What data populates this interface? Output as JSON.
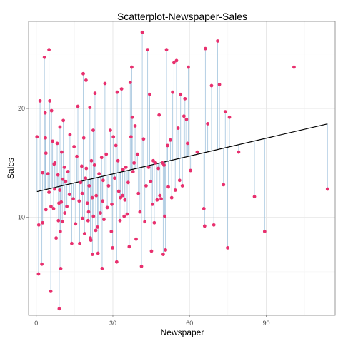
{
  "chart_data": {
    "type": "scatter",
    "title": "Scatterplot-Newspaper-Sales",
    "xlabel": "Newspaper",
    "ylabel": "Sales",
    "xlim": [
      -3,
      117
    ],
    "ylim": [
      1.0,
      28.0
    ],
    "x_ticks": [
      0,
      30,
      60,
      90
    ],
    "y_ticks": [
      10,
      20
    ],
    "grid": true,
    "regression_line": {
      "intercept": 12.35,
      "slope": 0.0547,
      "x_range": [
        0.3,
        114
      ]
    },
    "residual_segments": true,
    "points": [
      [
        0.3,
        17.4
      ],
      [
        0.9,
        4.8
      ],
      [
        1.0,
        9.3
      ],
      [
        1.5,
        20.7
      ],
      [
        2.2,
        5.7
      ],
      [
        2.5,
        14.1
      ],
      [
        2.5,
        9.5
      ],
      [
        3.2,
        24.7
      ],
      [
        3.5,
        19.6
      ],
      [
        3.6,
        17.3
      ],
      [
        3.8,
        10.7
      ],
      [
        3.8,
        15.9
      ],
      [
        4.6,
        14.0
      ],
      [
        5.0,
        25.4
      ],
      [
        5.0,
        12.3
      ],
      [
        5.3,
        20.7
      ],
      [
        5.7,
        3.2
      ],
      [
        5.8,
        11.0
      ],
      [
        6.0,
        19.8
      ],
      [
        6.4,
        17.0
      ],
      [
        6.8,
        10.8
      ],
      [
        7.0,
        14.9
      ],
      [
        7.2,
        12.6
      ],
      [
        7.3,
        15.0
      ],
      [
        7.8,
        8.1
      ],
      [
        8.2,
        16.8
      ],
      [
        8.5,
        13.9
      ],
      [
        8.7,
        9.7
      ],
      [
        8.9,
        11.3
      ],
      [
        9.0,
        1.6
      ],
      [
        9.2,
        12.5
      ],
      [
        9.3,
        18.3
      ],
      [
        9.4,
        8.7
      ],
      [
        9.6,
        5.3
      ],
      [
        9.8,
        11.4
      ],
      [
        10.0,
        16.0
      ],
      [
        10.2,
        9.6
      ],
      [
        10.4,
        13.5
      ],
      [
        10.6,
        18.9
      ],
      [
        11.0,
        14.6
      ],
      [
        11.2,
        10.4
      ],
      [
        11.5,
        13.3
      ],
      [
        12.0,
        11.0
      ],
      [
        12.4,
        14.2
      ],
      [
        13.0,
        12.1
      ],
      [
        13.2,
        17.6
      ],
      [
        13.9,
        7.6
      ],
      [
        14.5,
        11.7
      ],
      [
        14.8,
        16.5
      ],
      [
        15.4,
        9.4
      ],
      [
        15.9,
        15.6
      ],
      [
        16.3,
        20.2
      ],
      [
        16.8,
        11.5
      ],
      [
        17.0,
        7.6
      ],
      [
        17.4,
        13.2
      ],
      [
        17.8,
        14.7
      ],
      [
        18.0,
        12.2
      ],
      [
        18.1,
        9.9
      ],
      [
        18.4,
        23.2
      ],
      [
        18.6,
        17.3
      ],
      [
        18.9,
        8.5
      ],
      [
        19.3,
        13.6
      ],
      [
        19.5,
        22.6
      ],
      [
        19.6,
        14.5
      ],
      [
        20.0,
        11.3
      ],
      [
        20.3,
        9.7
      ],
      [
        20.5,
        10.5
      ],
      [
        20.7,
        12.9
      ],
      [
        21.0,
        20.1
      ],
      [
        21.2,
        8.1
      ],
      [
        21.4,
        7.9
      ],
      [
        21.6,
        15.2
      ],
      [
        21.9,
        11.8
      ],
      [
        22.0,
        6.6
      ],
      [
        22.3,
        18.0
      ],
      [
        22.4,
        10.1
      ],
      [
        22.8,
        14.8
      ],
      [
        23.0,
        21.4
      ],
      [
        23.3,
        8.8
      ],
      [
        23.5,
        12.0
      ],
      [
        24.0,
        9.1
      ],
      [
        24.2,
        6.7
      ],
      [
        24.6,
        14.0
      ],
      [
        25.1,
        10.4
      ],
      [
        25.6,
        15.5
      ],
      [
        25.8,
        5.3
      ],
      [
        26.0,
        11.5
      ],
      [
        26.2,
        13.4
      ],
      [
        26.5,
        9.8
      ],
      [
        26.9,
        22.3
      ],
      [
        27.4,
        15.8
      ],
      [
        27.8,
        10.9
      ],
      [
        28.3,
        12.9
      ],
      [
        29.0,
        18.0
      ],
      [
        29.4,
        8.7
      ],
      [
        29.6,
        11.2
      ],
      [
        29.9,
        7.2
      ],
      [
        30.2,
        17.4
      ],
      [
        30.7,
        13.6
      ],
      [
        31.2,
        16.6
      ],
      [
        31.5,
        5.9
      ],
      [
        31.7,
        21.5
      ],
      [
        32.0,
        15.2
      ],
      [
        32.3,
        12.4
      ],
      [
        32.8,
        9.7
      ],
      [
        33.0,
        11.8
      ],
      [
        33.4,
        21.8
      ],
      [
        33.8,
        12.0
      ],
      [
        34.0,
        14.4
      ],
      [
        34.4,
        10.1
      ],
      [
        34.7,
        11.6
      ],
      [
        35.1,
        14.6
      ],
      [
        35.6,
        10.3
      ],
      [
        36.0,
        13.2
      ],
      [
        36.4,
        7.3
      ],
      [
        36.8,
        22.4
      ],
      [
        37.1,
        17.4
      ],
      [
        37.4,
        23.8
      ],
      [
        37.6,
        19.2
      ],
      [
        37.9,
        14.2
      ],
      [
        38.3,
        15.0
      ],
      [
        38.7,
        18.4
      ],
      [
        39.1,
        8.0
      ],
      [
        39.6,
        15.8
      ],
      [
        40.0,
        12.2
      ],
      [
        40.6,
        10.5
      ],
      [
        41.2,
        5.5
      ],
      [
        41.5,
        27.0
      ],
      [
        42.0,
        17.2
      ],
      [
        42.5,
        9.6
      ],
      [
        43.0,
        12.9
      ],
      [
        43.6,
        25.4
      ],
      [
        44.0,
        14.6
      ],
      [
        44.4,
        21.3
      ],
      [
        44.8,
        13.3
      ],
      [
        45.1,
        6.9
      ],
      [
        45.5,
        11.2
      ],
      [
        45.8,
        15.2
      ],
      [
        46.2,
        9.5
      ],
      [
        46.7,
        15.0
      ],
      [
        47.3,
        11.6
      ],
      [
        47.8,
        14.5
      ],
      [
        48.1,
        19.4
      ],
      [
        48.4,
        12.0
      ],
      [
        48.9,
        11.7
      ],
      [
        49.4,
        15.0
      ],
      [
        49.7,
        6.6
      ],
      [
        50.0,
        14.8
      ],
      [
        50.3,
        10.1
      ],
      [
        50.6,
        7.0
      ],
      [
        51.0,
        25.4
      ],
      [
        51.4,
        16.6
      ],
      [
        51.7,
        12.8
      ],
      [
        52.5,
        17.1
      ],
      [
        53.0,
        11.8
      ],
      [
        53.4,
        21.5
      ],
      [
        53.9,
        24.2
      ],
      [
        54.4,
        12.5
      ],
      [
        54.9,
        24.4
      ],
      [
        55.5,
        18.2
      ],
      [
        56.1,
        13.4
      ],
      [
        56.5,
        21.3
      ],
      [
        57.2,
        12.9
      ],
      [
        57.8,
        19.3
      ],
      [
        58.2,
        20.9
      ],
      [
        58.8,
        19.0
      ],
      [
        59.2,
        16.8
      ],
      [
        59.5,
        23.8
      ],
      [
        60.4,
        14.3
      ],
      [
        63.0,
        16.0
      ],
      [
        65.6,
        10.8
      ],
      [
        65.9,
        9.2
      ],
      [
        66.2,
        25.5
      ],
      [
        67.1,
        18.6
      ],
      [
        68.6,
        22.1
      ],
      [
        69.5,
        9.3
      ],
      [
        71.0,
        26.2
      ],
      [
        71.7,
        22.2
      ],
      [
        73.3,
        13.0
      ],
      [
        74.0,
        19.7
      ],
      [
        74.9,
        7.2
      ],
      [
        75.6,
        19.2
      ],
      [
        79.2,
        16.0
      ],
      [
        85.4,
        11.9
      ],
      [
        89.4,
        8.7
      ],
      [
        100.9,
        23.8
      ],
      [
        114.0,
        12.6
      ]
    ]
  }
}
